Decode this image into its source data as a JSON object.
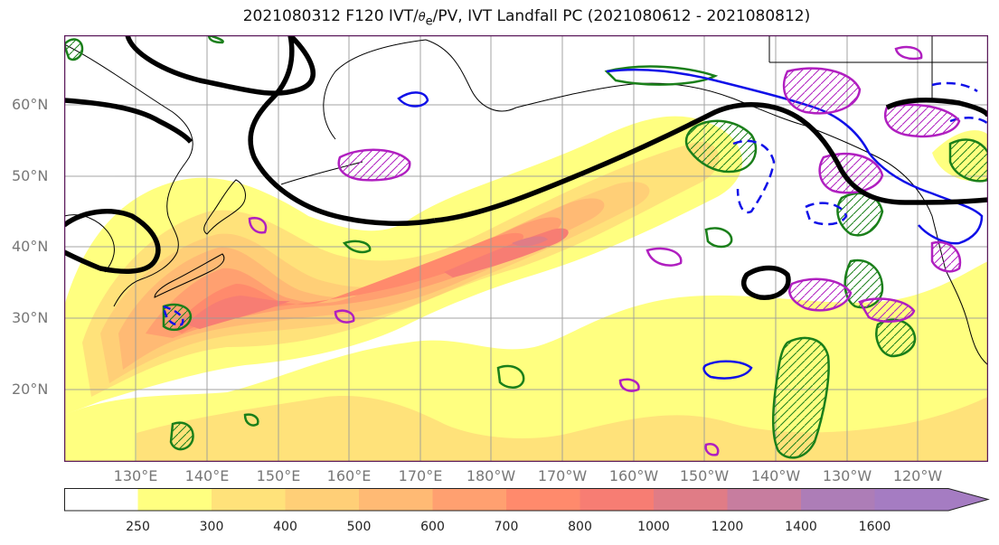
{
  "title": {
    "prefix": "2021080312 F120 IVT/",
    "theta_symbol": "θ",
    "theta_sub": "e",
    "suffix": "/PV, IVT Landfall PC (2021080612 - 2021080812)"
  },
  "axes": {
    "lat_labels": [
      "60°N",
      "50°N",
      "40°N",
      "30°N",
      "20°N"
    ],
    "lon_labels": [
      "130°E",
      "140°E",
      "150°E",
      "160°E",
      "170°E",
      "180°W",
      "170°W",
      "160°W",
      "150°W",
      "140°W",
      "130°W",
      "120°W"
    ]
  },
  "colorbar": {
    "levels": [
      "250",
      "300",
      "400",
      "500",
      "600",
      "700",
      "800",
      "1000",
      "1200",
      "1400",
      "1600"
    ],
    "colors": [
      "#ffffff",
      "#ffff80",
      "#ffe27a",
      "#ffcf77",
      "#ffba74",
      "#ffa070",
      "#ff8a6c",
      "#f77d73",
      "#e07c86",
      "#c77d9f",
      "#ad7db7",
      "#a57cc2"
    ]
  },
  "colors": {
    "frame": "#5b1a5b",
    "grid": "#9a9a9a",
    "contour_black": "#000000",
    "contour_green": "#1a7f1a",
    "contour_blue": "#1010e8",
    "contour_magenta": "#b01fc0"
  }
}
